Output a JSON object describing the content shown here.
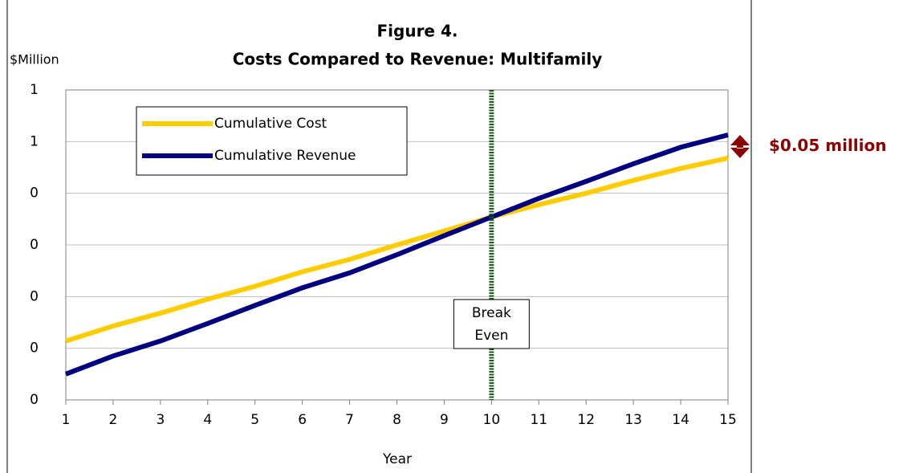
{
  "chart_data": {
    "type": "line",
    "title": [
      "Figure 4.",
      "Costs Compared to Revenue: Multifamily"
    ],
    "y_label": "$Million",
    "x_label": "Year",
    "x": [
      1,
      2,
      3,
      4,
      5,
      6,
      7,
      8,
      9,
      10,
      11,
      12,
      13,
      14,
      15
    ],
    "series": [
      {
        "name": "Cumulative Cost",
        "color": "#ffcc00",
        "values": [
          0.114,
          0.143,
          0.168,
          0.195,
          0.22,
          0.248,
          0.272,
          0.3,
          0.327,
          0.354,
          0.378,
          0.4,
          0.425,
          0.448,
          0.468
        ]
      },
      {
        "name": "Cumulative Revenue",
        "color": "#000080",
        "values": [
          0.05,
          0.085,
          0.114,
          0.148,
          0.183,
          0.217,
          0.246,
          0.281,
          0.318,
          0.354,
          0.39,
          0.423,
          0.457,
          0.489,
          0.513
        ]
      }
    ],
    "xlim": [
      1,
      15
    ],
    "xticks": [
      1,
      2,
      3,
      4,
      5,
      6,
      7,
      8,
      9,
      10,
      11,
      12,
      13,
      14,
      15
    ],
    "ylim": [
      0,
      0.6
    ],
    "yticks": [
      0,
      {
        "value": 0.1,
        "label": "0"
      },
      {
        "value": 0.2,
        "label": "0"
      },
      {
        "value": 0.3,
        "label": "0"
      },
      {
        "value": 0.4,
        "label": "0"
      },
      {
        "value": 0.5,
        "label": "1"
      },
      {
        "value": 0.6,
        "label": "1"
      }
    ],
    "grid": true,
    "break_even": {
      "x": 10,
      "label": [
        "Break",
        "Even"
      ],
      "color": "#1a5c1a"
    },
    "gap_annotation": {
      "label": "$0.05 million",
      "color": "#8b0000"
    }
  }
}
